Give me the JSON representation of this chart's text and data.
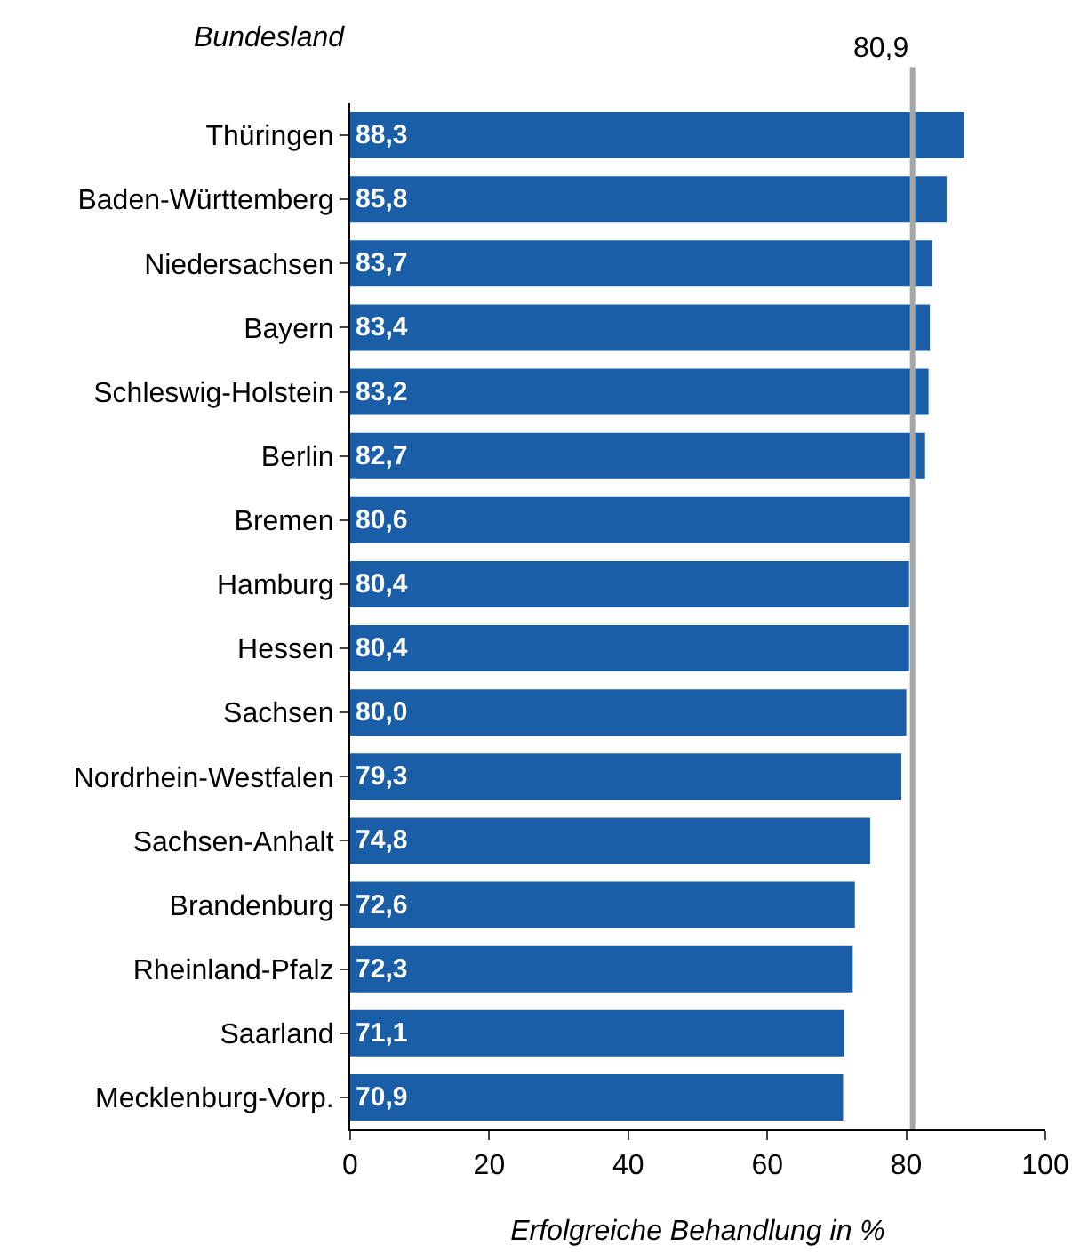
{
  "chart_data": {
    "type": "bar",
    "orientation": "horizontal",
    "ylabel": "Bundesland",
    "xlabel": "Erfolgreiche Behandlung in %",
    "categories": [
      "Thüringen",
      "Baden-Württemberg",
      "Niedersachsen",
      "Bayern",
      "Schleswig-Holstein",
      "Berlin",
      "Bremen",
      "Hamburg",
      "Hessen",
      "Sachsen",
      "Nordrhein-Westfalen",
      "Sachsen-Anhalt",
      "Brandenburg",
      "Rheinland-Pfalz",
      "Saarland",
      "Mecklenburg-Vorp."
    ],
    "values": [
      88.3,
      85.8,
      83.7,
      83.4,
      83.2,
      82.7,
      80.6,
      80.4,
      80.4,
      80.0,
      79.3,
      74.8,
      72.6,
      72.3,
      71.1,
      70.9
    ],
    "value_labels": [
      "88,3",
      "85,8",
      "83,7",
      "83,4",
      "83,2",
      "82,7",
      "80,6",
      "80,4",
      "80,4",
      "80,0",
      "79,3",
      "74,8",
      "72,6",
      "72,3",
      "71,1",
      "70,9"
    ],
    "color": "#1a5ea8",
    "xlim": [
      0,
      100
    ],
    "xticks": [
      0,
      20,
      40,
      60,
      80,
      100
    ],
    "ref_lines": [
      {
        "axis": "x",
        "value": 80.9,
        "label": "80,9",
        "color": "#a6a6a6"
      }
    ],
    "grid": false
  }
}
